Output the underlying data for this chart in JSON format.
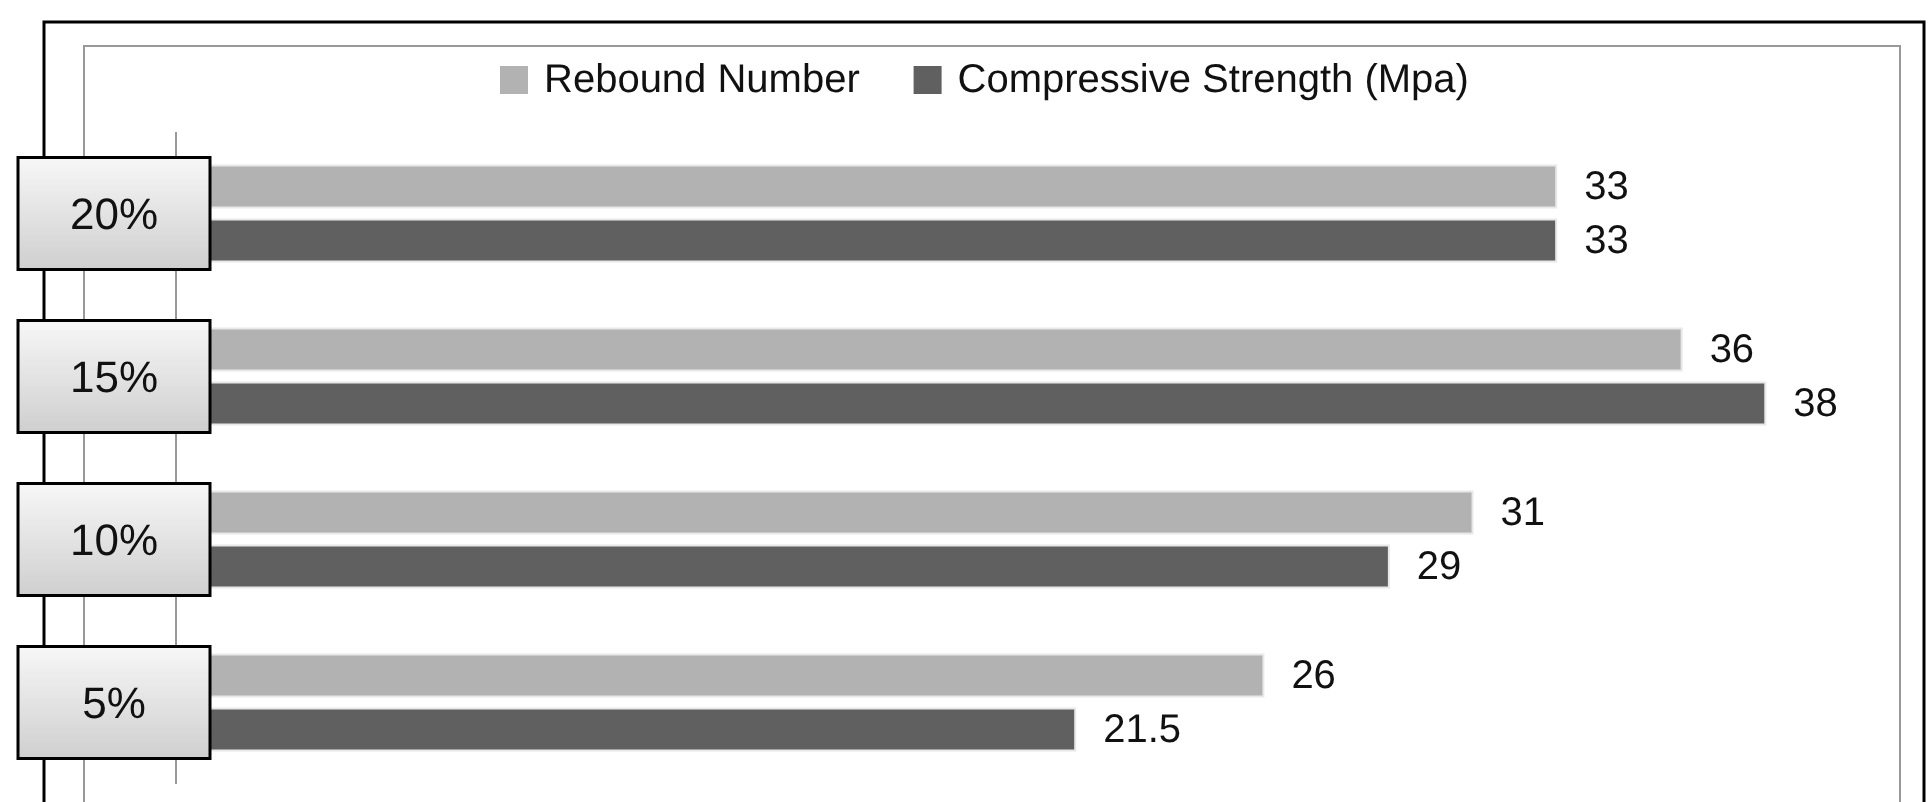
{
  "chart_data": {
    "type": "bar",
    "orientation": "horizontal",
    "categories": [
      "20%",
      "15%",
      "10%",
      "5%"
    ],
    "series": [
      {
        "name": "Rebound Number",
        "color": "#b2b2b2",
        "values": [
          33,
          36,
          31,
          26
        ]
      },
      {
        "name": "Compressive Strength (Mpa)",
        "color": "#606060",
        "values": [
          33,
          38,
          29,
          21.5
        ]
      }
    ],
    "data_labels": true,
    "legend": "top"
  }
}
